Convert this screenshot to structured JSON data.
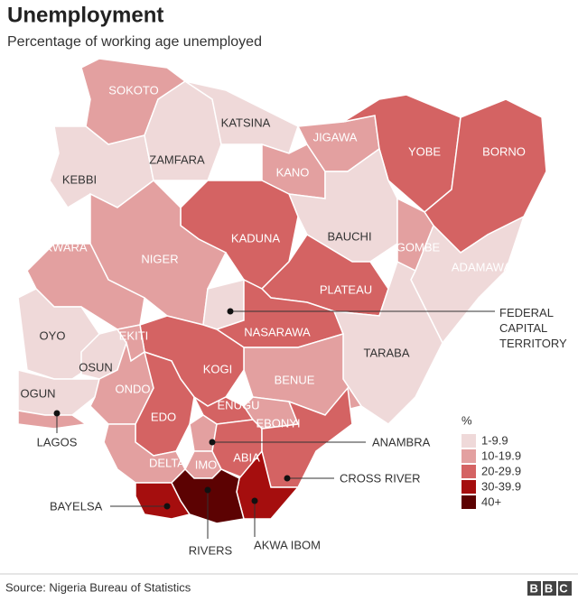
{
  "header": {
    "title": "Unemployment",
    "subtitle": "Percentage of working age unemployed"
  },
  "map": {
    "states": [
      {
        "name": "SOKOTO",
        "color": "#e3a0a0"
      },
      {
        "name": "KEBBI",
        "color": "#efd9d9"
      },
      {
        "name": "ZAMFARA",
        "color": "#efd9d9"
      },
      {
        "name": "KATSINA",
        "color": "#efd9d9"
      },
      {
        "name": "KANO",
        "color": "#e3a0a0"
      },
      {
        "name": "JIGAWA",
        "color": "#e3a0a0"
      },
      {
        "name": "YOBE",
        "color": "#d46363"
      },
      {
        "name": "BORNO",
        "color": "#d46363"
      },
      {
        "name": "BAUCHI",
        "color": "#efd9d9"
      },
      {
        "name": "GOMBE",
        "color": "#e3a0a0"
      },
      {
        "name": "ADAMAWA",
        "color": "#efd9d9"
      },
      {
        "name": "KADUNA",
        "color": "#d46363"
      },
      {
        "name": "NIGER",
        "color": "#e3a0a0"
      },
      {
        "name": "KWARA",
        "color": "#e3a0a0"
      },
      {
        "name": "FEDERAL CAPITAL TERRITORY",
        "color": "#efd9d9"
      },
      {
        "name": "PLATEAU",
        "color": "#d46363"
      },
      {
        "name": "NASARAWA",
        "color": "#d46363"
      },
      {
        "name": "TARABA",
        "color": "#efd9d9"
      },
      {
        "name": "BENUE",
        "color": "#e3a0a0"
      },
      {
        "name": "KOGI",
        "color": "#d46363"
      },
      {
        "name": "OYO",
        "color": "#efd9d9"
      },
      {
        "name": "OSUN",
        "color": "#efd9d9"
      },
      {
        "name": "EKITI",
        "color": "#e3a0a0"
      },
      {
        "name": "OGUN",
        "color": "#efd9d9"
      },
      {
        "name": "ONDO",
        "color": "#e3a0a0"
      },
      {
        "name": "LAGOS",
        "color": "#e3a0a0"
      },
      {
        "name": "EDO",
        "color": "#d46363"
      },
      {
        "name": "DELTA",
        "color": "#e3a0a0"
      },
      {
        "name": "ENUGU",
        "color": "#d46363"
      },
      {
        "name": "ANAMBRA",
        "color": "#e3a0a0"
      },
      {
        "name": "EBONYI",
        "color": "#e3a0a0"
      },
      {
        "name": "IMO",
        "color": "#e3a0a0"
      },
      {
        "name": "ABIA",
        "color": "#d46363"
      },
      {
        "name": "CROSS RIVER",
        "color": "#d46363"
      },
      {
        "name": "AKWA IBOM",
        "color": "#a50e0e"
      },
      {
        "name": "BAYELSA",
        "color": "#a50e0e"
      },
      {
        "name": "RIVERS",
        "color": "#5c0202"
      }
    ]
  },
  "legend": {
    "title": "%",
    "items": [
      {
        "label": "1-9.9",
        "color": "#efd9d9"
      },
      {
        "label": "10-19.9",
        "color": "#e3a0a0"
      },
      {
        "label": "20-29.9",
        "color": "#d46363"
      },
      {
        "label": "30-39.9",
        "color": "#a50e0e"
      },
      {
        "label": "40+",
        "color": "#5c0202"
      }
    ]
  },
  "source": "Source: Nigeria Bureau of Statistics",
  "logo": "BBC"
}
